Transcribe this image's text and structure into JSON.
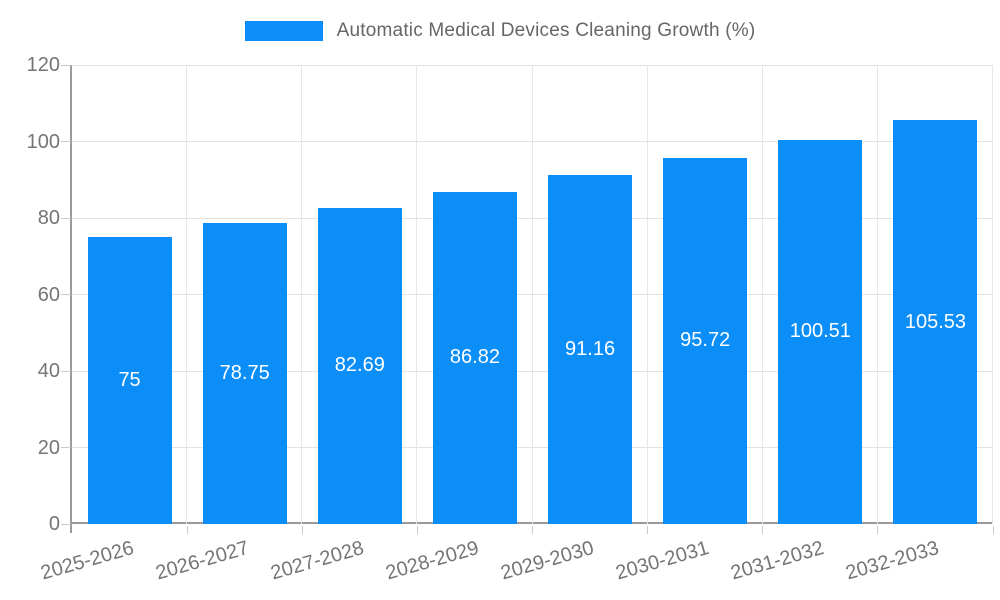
{
  "legend": {
    "label": "Automatic Medical Devices Cleaning Growth (%)"
  },
  "chart_data": {
    "type": "bar",
    "title": "Automatic Medical Devices Cleaning Growth (%)",
    "categories": [
      "2025-2026",
      "2026-2027",
      "2027-2028",
      "2028-2029",
      "2029-2030",
      "2030-2031",
      "2031-2032",
      "2032-2033"
    ],
    "values": [
      75,
      78.75,
      82.69,
      86.82,
      91.16,
      95.72,
      100.51,
      105.53
    ],
    "bar_labels": [
      "75",
      "78.75",
      "82.69",
      "86.82",
      "91.16",
      "95.72",
      "100.51",
      "105.53"
    ],
    "xlabel": "",
    "ylabel": "",
    "ylim": [
      0,
      120
    ],
    "yticks": [
      0,
      20,
      40,
      60,
      80,
      100,
      120
    ],
    "grid": true,
    "legend_position": "top-center",
    "x_label_rotation_deg": -16,
    "colors": {
      "bar": "#0b8ef8",
      "bar_value_text": "#ffffff",
      "axis_line": "#9a9a9a",
      "gridline": "#e3e3e3",
      "tick": "#c9c9c9",
      "axis_text": "#757575",
      "legend_text": "#666666",
      "background": "#ffffff"
    }
  }
}
